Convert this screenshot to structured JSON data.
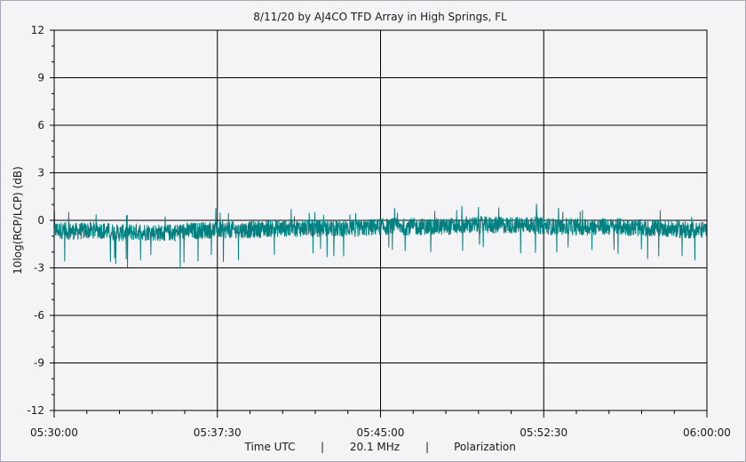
{
  "window_border_color": "#a9a9b3",
  "chart_data": {
    "type": "line",
    "title": "8/11/20  by  AJ4CO TFD Array  in  High Springs, FL",
    "ylabel": "10log(RCP/LCP) (dB)",
    "xlabel_parts": [
      "Time UTC",
      "|",
      "20.1 MHz",
      "|",
      "Polarization"
    ],
    "xlim": [
      "05:30:00",
      "06:00:00"
    ],
    "ylim": [
      -12,
      12
    ],
    "y_ticks": [
      12,
      9,
      6,
      3,
      0,
      -3,
      -6,
      -9,
      -12
    ],
    "x_ticks": [
      "05:30:00",
      "05:37:30",
      "05:45:00",
      "05:52:30",
      "06:00:00"
    ],
    "grid": true,
    "series": [
      {
        "color": "#008080",
        "points": [
          [
            "05:30:00",
            -0.6
          ],
          [
            "05:31:00",
            -0.7
          ],
          [
            "05:32:00",
            -0.6
          ],
          [
            "05:33:00",
            -0.8
          ],
          [
            "05:34:00",
            -0.7
          ],
          [
            "05:35:00",
            -0.8
          ],
          [
            "05:36:00",
            -0.7
          ],
          [
            "05:37:00",
            -0.6
          ],
          [
            "05:38:00",
            -0.6
          ],
          [
            "05:39:00",
            -0.6
          ],
          [
            "05:40:00",
            -0.5
          ],
          [
            "05:41:00",
            -0.5
          ],
          [
            "05:42:00",
            -0.5
          ],
          [
            "05:43:00",
            -0.5
          ],
          [
            "05:44:00",
            -0.5
          ],
          [
            "05:45:00",
            -0.4
          ],
          [
            "05:46:00",
            -0.4
          ],
          [
            "05:47:00",
            -0.4
          ],
          [
            "05:48:00",
            -0.4
          ],
          [
            "05:49:00",
            -0.3
          ],
          [
            "05:50:00",
            -0.3
          ],
          [
            "05:51:00",
            -0.3
          ],
          [
            "05:52:00",
            -0.3
          ],
          [
            "05:53:00",
            -0.4
          ],
          [
            "05:54:00",
            -0.4
          ],
          [
            "05:55:00",
            -0.4
          ],
          [
            "05:56:00",
            -0.4
          ],
          [
            "05:57:00",
            -0.5
          ],
          [
            "05:58:00",
            -0.5
          ],
          [
            "05:59:00",
            -0.6
          ],
          [
            "06:00:00",
            -0.6
          ]
        ],
        "spread": [
          [
            -1.6,
            1.0
          ],
          [
            -1.5,
            0.9
          ],
          [
            -1.5,
            0.9
          ],
          [
            -1.6,
            0.8
          ],
          [
            -1.6,
            0.9
          ],
          [
            -1.7,
            0.8
          ],
          [
            -1.9,
            0.9
          ],
          [
            -1.6,
            1.0
          ],
          [
            -1.5,
            0.9
          ],
          [
            -1.5,
            0.9
          ],
          [
            -1.4,
            0.9
          ],
          [
            -1.4,
            0.8
          ],
          [
            -1.4,
            0.9
          ],
          [
            -1.4,
            0.9
          ],
          [
            -1.4,
            0.9
          ],
          [
            -1.3,
            0.9
          ],
          [
            -1.3,
            1.0
          ],
          [
            -1.3,
            1.0
          ],
          [
            -1.3,
            1.0
          ],
          [
            -1.2,
            1.0
          ],
          [
            -1.3,
            1.1
          ],
          [
            -1.3,
            1.0
          ],
          [
            -1.3,
            1.0
          ],
          [
            -1.3,
            1.0
          ],
          [
            -1.3,
            0.9
          ],
          [
            -1.3,
            0.9
          ],
          [
            -1.3,
            0.9
          ],
          [
            -1.4,
            1.1
          ],
          [
            -1.4,
            0.9
          ],
          [
            -1.4,
            0.9
          ],
          [
            -1.4,
            0.8
          ]
        ]
      }
    ]
  }
}
